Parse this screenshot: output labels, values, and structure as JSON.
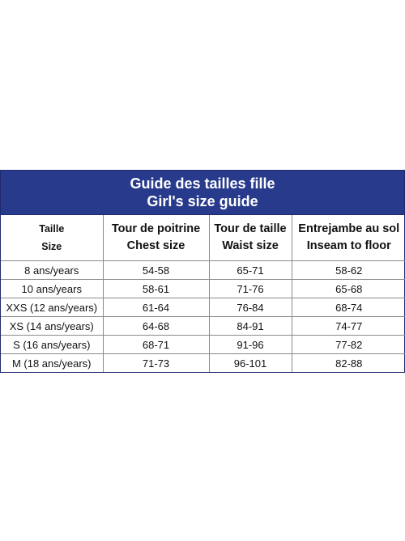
{
  "banner": {
    "title_fr": "Guide des tailles fille",
    "title_en": "Girl's size guide"
  },
  "headers": [
    {
      "fr": "Taille",
      "en": "Size"
    },
    {
      "fr": "Tour de poitrine",
      "en": "Chest size"
    },
    {
      "fr": "Tour de taille",
      "en": "Waist size"
    },
    {
      "fr": "Entrejambe au sol",
      "en": "Inseam to floor"
    }
  ],
  "rows": [
    {
      "size": "8 ans/years",
      "chest": "54-58",
      "waist": "65-71",
      "inseam": "58-62"
    },
    {
      "size": "10 ans/years",
      "chest": "58-61",
      "waist": "71-76",
      "inseam": "65-68"
    },
    {
      "size": "XXS (12 ans/years)",
      "chest": "61-64",
      "waist": "76-84",
      "inseam": "68-74"
    },
    {
      "size": "XS (14 ans/years)",
      "chest": "64-68",
      "waist": "84-91",
      "inseam": "74-77"
    },
    {
      "size": "S (16 ans/years)",
      "chest": "68-71",
      "waist": "91-96",
      "inseam": "77-82"
    },
    {
      "size": "M (18 ans/years)",
      "chest": "71-73",
      "waist": "96-101",
      "inseam": "82-88"
    }
  ],
  "colors": {
    "banner_bg": "#283a8c",
    "banner_text": "#ffffff",
    "grid": "#8a8a8a"
  }
}
